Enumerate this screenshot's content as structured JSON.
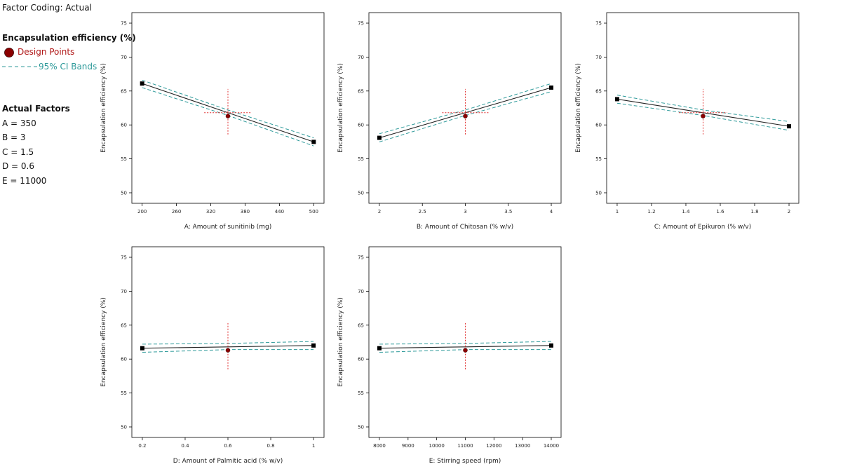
{
  "sidebar": {
    "coding": "Factor Coding: Actual",
    "response": "Encapsulation efficiency (%)",
    "legend": [
      {
        "label": "Design Points",
        "color": "#b01818"
      },
      {
        "label": "95% CI Bands",
        "color": "#2e9a9a"
      }
    ],
    "factors_title": "Actual Factors",
    "factors": [
      "A = 350",
      "B = 3",
      "C = 1.5",
      "D = 0.6",
      "E = 11000"
    ]
  },
  "chart_data": [
    {
      "type": "line",
      "x_label": "A: Amount of sunitinib (mg)",
      "y_label": "Encapsulation efficiency (%)",
      "x": [
        200,
        350,
        500
      ],
      "xlim": [
        182,
        518
      ],
      "xticks": [
        200,
        260,
        320,
        380,
        440,
        500
      ],
      "ylim": [
        48.45,
        76.55
      ],
      "yticks": [
        50,
        55,
        60,
        65,
        70,
        75
      ],
      "series": [
        {
          "color": "#222222",
          "values": [
            66.1,
            61.8,
            57.5
          ]
        },
        {
          "color": "#2e9a9a",
          "values": [
            66.6,
            62.2,
            58.1
          ]
        },
        {
          "color": "#2e9a9a",
          "values": [
            65.5,
            61.4,
            56.9
          ]
        }
      ],
      "design": {
        "x": 350,
        "y": 61.3,
        "color": "#8b0000"
      },
      "lsd": {
        "x": [
          308.5,
          390
        ],
        "y": [
          58.6,
          65.3
        ],
        "color": "#e03030"
      }
    },
    {
      "type": "line",
      "x_label": "B: Amount of Chitosan (% w/v)",
      "y_label": "Encapsulation efficiency (%)",
      "x": [
        2,
        3,
        4
      ],
      "xlim": [
        1.878,
        4.114
      ],
      "xticks": [
        2,
        2.5,
        3,
        3.5,
        4
      ],
      "ylim": [
        48.45,
        76.55
      ],
      "yticks": [
        50,
        55,
        60,
        65,
        70,
        75
      ],
      "series": [
        {
          "color": "#222222",
          "values": [
            58.1,
            61.8,
            65.5
          ]
        },
        {
          "color": "#2e9a9a",
          "values": [
            58.7,
            62.2,
            66.1
          ]
        },
        {
          "color": "#2e9a9a",
          "values": [
            57.5,
            61.4,
            64.9
          ]
        }
      ],
      "design": {
        "x": 3,
        "y": 61.3,
        "color": "#8b0000"
      },
      "lsd": {
        "x": [
          2.73,
          3.27
        ],
        "y": [
          58.6,
          65.3
        ],
        "color": "#e03030"
      }
    },
    {
      "type": "line",
      "x_label": "C: Amount of Epikuron  (% w/v)",
      "y_label": "Encapsulation efficiency (%)",
      "x": [
        1,
        1.5,
        2
      ],
      "xlim": [
        0.939,
        2.057
      ],
      "xticks": [
        1,
        1.2,
        1.4,
        1.6,
        1.8,
        2
      ],
      "ylim": [
        48.45,
        76.55
      ],
      "yticks": [
        50,
        55,
        60,
        65,
        70,
        75
      ],
      "series": [
        {
          "color": "#222222",
          "values": [
            63.8,
            61.8,
            59.8
          ]
        },
        {
          "color": "#2e9a9a",
          "values": [
            64.4,
            62.2,
            60.5
          ]
        },
        {
          "color": "#2e9a9a",
          "values": [
            63.2,
            61.4,
            59.2
          ]
        }
      ],
      "design": {
        "x": 1.5,
        "y": 61.3,
        "color": "#8b0000"
      },
      "lsd": {
        "x": [
          1.36,
          1.64
        ],
        "y": [
          58.6,
          65.3
        ],
        "color": "#e03030"
      }
    },
    {
      "type": "line",
      "x_label": "D: Amount of Palmitic acid (% w/v)",
      "y_label": "Encapsulation efficiency (%)",
      "x": [
        0.2,
        0.6,
        1
      ],
      "xlim": [
        0.151,
        1.049
      ],
      "xticks": [
        0.2,
        0.4,
        0.6,
        0.8,
        1
      ],
      "ylim": [
        48.45,
        76.55
      ],
      "yticks": [
        50,
        55,
        60,
        65,
        70,
        75
      ],
      "series": [
        {
          "color": "#222222",
          "values": [
            61.6,
            61.8,
            62.0
          ]
        },
        {
          "color": "#2e9a9a",
          "values": [
            62.2,
            62.3,
            62.6
          ]
        },
        {
          "color": "#2e9a9a",
          "values": [
            61.0,
            61.4,
            61.4
          ]
        }
      ],
      "design": {
        "x": 0.6,
        "y": 61.3,
        "color": "#8b0000"
      },
      "lsd": {
        "y": [
          58.5,
          65.3
        ],
        "color": "#e03030"
      }
    },
    {
      "type": "line",
      "x_label": "E: Stirring speed (rpm)",
      "y_label": "Encapsulation efficiency (%)",
      "x": [
        8000,
        11000,
        14000
      ],
      "xlim": [
        7633,
        14343
      ],
      "xticks": [
        8000,
        9000,
        10000,
        11000,
        12000,
        13000,
        14000
      ],
      "ylim": [
        48.45,
        76.55
      ],
      "yticks": [
        50,
        55,
        60,
        65,
        70,
        75
      ],
      "series": [
        {
          "color": "#222222",
          "values": [
            61.6,
            61.8,
            62.0
          ]
        },
        {
          "color": "#2e9a9a",
          "values": [
            62.2,
            62.3,
            62.6
          ]
        },
        {
          "color": "#2e9a9a",
          "values": [
            61.0,
            61.4,
            61.4
          ]
        }
      ],
      "design": {
        "x": 11000,
        "y": 61.3,
        "color": "#8b0000"
      },
      "lsd": {
        "y": [
          58.5,
          65.3
        ],
        "color": "#e03030"
      }
    }
  ]
}
